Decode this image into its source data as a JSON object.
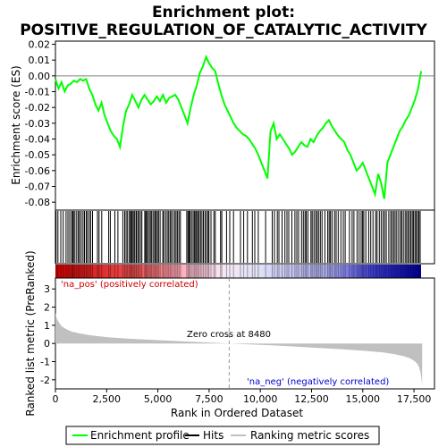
{
  "chart_data": {
    "type": "line",
    "title_line1": "Enrichment plot:",
    "title_line2": "POSITIVE_REGULATION_OF_CATALYTIC_ACTIVITY",
    "top_panel": {
      "ylabel": "Enrichment score (ES)",
      "ylim": [
        -0.085,
        0.022
      ],
      "yticks": [
        "0.02",
        "0.01",
        "0.00",
        "-0.01",
        "-0.02",
        "-0.03",
        "-0.04",
        "-0.05",
        "-0.06",
        "-0.07",
        "-0.08"
      ],
      "ytick_values": [
        0.02,
        0.01,
        0.0,
        -0.01,
        -0.02,
        -0.03,
        -0.04,
        -0.05,
        -0.06,
        -0.07,
        -0.08
      ],
      "series": [
        {
          "name": "Enrichment profile",
          "color": "#00ff00",
          "x": [
            0,
            150,
            300,
            450,
            600,
            750,
            900,
            1050,
            1200,
            1350,
            1500,
            1650,
            1800,
            1950,
            2100,
            2250,
            2400,
            2550,
            2700,
            2850,
            3000,
            3150,
            3300,
            3450,
            3600,
            3750,
            3900,
            4050,
            4200,
            4350,
            4500,
            4650,
            4800,
            4950,
            5100,
            5250,
            5400,
            5550,
            5700,
            5850,
            6000,
            6150,
            6300,
            6450,
            6600,
            6750,
            6900,
            7050,
            7200,
            7350,
            7500,
            7650,
            7800,
            7950,
            8100,
            8250,
            8400,
            8550,
            8700,
            8850,
            9000,
            9150,
            9300,
            9450,
            9600,
            9750,
            9900,
            10050,
            10200,
            10350,
            10500,
            10650,
            10800,
            10950,
            11100,
            11250,
            11400,
            11550,
            11700,
            11850,
            12000,
            12150,
            12300,
            12450,
            12600,
            12750,
            12900,
            13050,
            13200,
            13350,
            13500,
            13650,
            13800,
            13950,
            14100,
            14250,
            14400,
            14550,
            14700,
            14850,
            15000,
            15150,
            15300,
            15450,
            15600,
            15750,
            15900,
            16050,
            16200,
            16350,
            16500,
            16650,
            16800,
            16950,
            17100,
            17250,
            17400,
            17550,
            17700,
            17850
          ],
          "y": [
            -0.002,
            -0.008,
            -0.004,
            -0.01,
            -0.006,
            -0.005,
            -0.003,
            -0.004,
            -0.002,
            -0.003,
            -0.002,
            -0.008,
            -0.012,
            -0.018,
            -0.022,
            -0.017,
            -0.025,
            -0.03,
            -0.035,
            -0.038,
            -0.04,
            -0.045,
            -0.032,
            -0.022,
            -0.018,
            -0.012,
            -0.016,
            -0.02,
            -0.015,
            -0.012,
            -0.015,
            -0.018,
            -0.016,
            -0.013,
            -0.016,
            -0.012,
            -0.017,
            -0.014,
            -0.013,
            -0.012,
            -0.015,
            -0.02,
            -0.025,
            -0.03,
            -0.02,
            -0.012,
            -0.006,
            0.002,
            0.006,
            0.012,
            0.008,
            0.005,
            0.003,
            -0.005,
            -0.012,
            -0.018,
            -0.022,
            -0.026,
            -0.03,
            -0.033,
            -0.035,
            -0.037,
            -0.038,
            -0.04,
            -0.043,
            -0.046,
            -0.05,
            -0.055,
            -0.06,
            -0.065,
            -0.035,
            -0.03,
            -0.04,
            -0.037,
            -0.04,
            -0.043,
            -0.046,
            -0.05,
            -0.048,
            -0.045,
            -0.042,
            -0.044,
            -0.045,
            -0.04,
            -0.042,
            -0.038,
            -0.035,
            -0.033,
            -0.03,
            -0.028,
            -0.032,
            -0.035,
            -0.038,
            -0.04,
            -0.042,
            -0.047,
            -0.05,
            -0.055,
            -0.06,
            -0.058,
            -0.055,
            -0.06,
            -0.065,
            -0.07,
            -0.075,
            -0.062,
            -0.068,
            -0.078,
            -0.055,
            -0.05,
            -0.045,
            -0.04,
            -0.035,
            -0.032,
            -0.028,
            -0.025,
            -0.02,
            -0.015,
            -0.008,
            0.003
          ]
        }
      ]
    },
    "hits_panel": {
      "hit_positions": [
        30,
        120,
        260,
        380,
        520,
        610,
        700,
        790,
        840,
        880,
        950,
        1040,
        1120,
        1180,
        1260,
        1350,
        1420,
        1500,
        1560,
        1650,
        1720,
        1810,
        2050,
        2130,
        2260,
        2600,
        2680,
        2900,
        3050,
        3290,
        3380,
        3450,
        3520,
        3610,
        3670,
        3710,
        3760,
        3830,
        3880,
        3950,
        4020,
        4070,
        4150,
        4220,
        4360,
        4410,
        4450,
        4520,
        4590,
        4660,
        4710,
        4790,
        4850,
        4910,
        4980,
        5030,
        5110,
        5240,
        5290,
        5380,
        5460,
        5530,
        5600,
        5660,
        5740,
        5830,
        5890,
        5960,
        6030,
        6100,
        6410,
        6470,
        6520,
        6570,
        6640,
        6720,
        6780,
        6840,
        6890,
        6950,
        7010,
        7080,
        7150,
        7220,
        7300,
        7370,
        7450,
        7490,
        7590,
        7730,
        7800,
        8060,
        8120,
        8350,
        8510,
        8690,
        9030,
        9190,
        9370,
        9610,
        9730,
        9900,
        10260,
        10580,
        10690,
        10830,
        10910,
        11060,
        11200,
        11300,
        11390,
        11540,
        11690,
        11780,
        11870,
        12010,
        12100,
        12180,
        12240,
        12320,
        12470,
        12530,
        12620,
        12700,
        12770,
        12840,
        12930,
        13010,
        13150,
        13290,
        13360,
        13420,
        13500,
        13620,
        13700,
        13800,
        13930,
        14050,
        14140,
        14350,
        14480,
        14570,
        14720,
        14820,
        14920,
        14990,
        15050,
        15150,
        15290,
        15390,
        15500,
        15630,
        15700,
        15810,
        15900,
        15990,
        16070,
        16150,
        16270,
        16360,
        16430,
        16510,
        16580,
        16660,
        16750,
        16840,
        16900,
        16980,
        17070,
        17140,
        17210,
        17280,
        17350,
        17420,
        17480,
        17550,
        17610,
        17680,
        17740,
        17800
      ]
    },
    "rank_panel": {
      "ylabel": "Ranked list metric (PreRanked)",
      "ylim": [
        -2.5,
        3.6
      ],
      "yticks": [
        "3",
        "2",
        "1",
        "0",
        "-1",
        "-2"
      ],
      "ytick_values": [
        3,
        2,
        1,
        0,
        -1,
        -2
      ],
      "xlabel": "Rank in Ordered Dataset",
      "xticks": [
        "0",
        "2,500",
        "5,000",
        "7,500",
        "10,000",
        "12,500",
        "15,000",
        "17,500"
      ],
      "xtick_values": [
        0,
        2500,
        5000,
        7500,
        10000,
        12500,
        15000,
        17500
      ],
      "xlim": [
        0,
        18500
      ],
      "n_genes": 17900,
      "metric_curve": {
        "x": [
          0,
          50,
          100,
          200,
          300,
          500,
          800,
          1200,
          1700,
          2500,
          3500,
          5000,
          6500,
          8000,
          8480,
          9500,
          11000,
          12500,
          14000,
          15000,
          16000,
          16500,
          17000,
          17300,
          17500,
          17650,
          17750,
          17820,
          17870,
          17900
        ],
        "y": [
          1.7,
          1.45,
          1.3,
          1.1,
          0.95,
          0.8,
          0.65,
          0.55,
          0.45,
          0.35,
          0.27,
          0.18,
          0.1,
          0.03,
          0.0,
          -0.05,
          -0.13,
          -0.22,
          -0.32,
          -0.4,
          -0.5,
          -0.58,
          -0.7,
          -0.82,
          -0.95,
          -1.1,
          -1.3,
          -1.6,
          -2.0,
          -2.4
        ]
      },
      "zero_cross_label": "Zero cross at 8480",
      "zero_cross": 8480,
      "pos_label": "'na_pos' (positively correlated)",
      "neg_label": "'na_neg' (negatively correlated)",
      "pos_color": "#ff0000",
      "neg_color": "#0000ff",
      "fill_color": "#c0c0c0"
    },
    "legend": [
      {
        "label": "Enrichment profile",
        "color": "#00ff00",
        "kind": "line"
      },
      {
        "label": "Hits",
        "color": "#000000",
        "kind": "line"
      },
      {
        "label": "Ranking metric scores",
        "color": "#c0c0c0",
        "kind": "line"
      }
    ]
  }
}
